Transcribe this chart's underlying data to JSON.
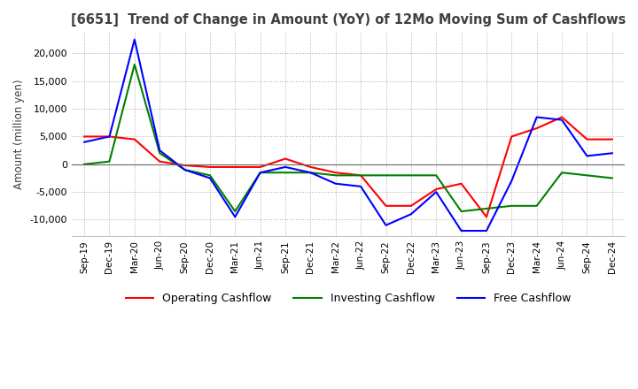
{
  "title": "[6651]  Trend of Change in Amount (YoY) of 12Mo Moving Sum of Cashflows",
  "ylabel": "Amount (million yen)",
  "x_labels": [
    "Sep-19",
    "Dec-19",
    "Mar-20",
    "Jun-20",
    "Sep-20",
    "Dec-20",
    "Mar-21",
    "Jun-21",
    "Sep-21",
    "Dec-21",
    "Mar-22",
    "Jun-22",
    "Sep-22",
    "Dec-22",
    "Mar-23",
    "Jun-23",
    "Sep-23",
    "Dec-23",
    "Mar-24",
    "Jun-24",
    "Sep-24",
    "Dec-24"
  ],
  "operating": [
    5000,
    5000,
    4500,
    500,
    -200,
    -500,
    -500,
    -500,
    1000,
    -500,
    -1500,
    -2000,
    -7500,
    -7500,
    -4500,
    -3500,
    -9500,
    5000,
    6500,
    8500,
    4500,
    4500
  ],
  "investing": [
    0,
    500,
    18000,
    2000,
    -1000,
    -2000,
    -8500,
    -1500,
    -1500,
    -1500,
    -2000,
    -2000,
    -2000,
    -2000,
    -2000,
    -8500,
    -8000,
    -7500,
    -7500,
    -1500,
    -2000,
    -2500
  ],
  "free": [
    4000,
    5000,
    22500,
    2500,
    -1000,
    -2500,
    -9500,
    -1500,
    -500,
    -1500,
    -3500,
    -4000,
    -11000,
    -9000,
    -5000,
    -12000,
    -12000,
    -3000,
    8500,
    8000,
    1500,
    2000
  ],
  "ylim": [
    -13000,
    24000
  ],
  "yticks": [
    -10000,
    -5000,
    0,
    5000,
    10000,
    15000,
    20000
  ],
  "operating_color": "#ff0000",
  "investing_color": "#008000",
  "free_color": "#0000ff",
  "bg_color": "#ffffff",
  "grid_color": "#aaaaaa",
  "title_color": "#404040"
}
